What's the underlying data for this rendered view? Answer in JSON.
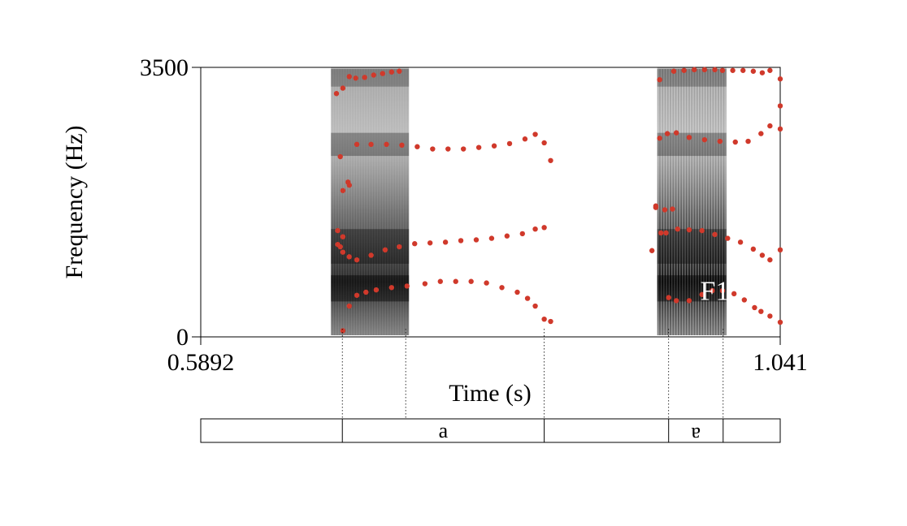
{
  "chart_data": {
    "type": "scatter",
    "title": "",
    "xlabel": "Time (s)",
    "ylabel": "Frequency (Hz)",
    "xlim": [
      0.5892,
      1.041
    ],
    "ylim": [
      0,
      3500
    ],
    "x_tick_labels": [
      "0.5892",
      "1.041"
    ],
    "y_tick_labels": [
      "0",
      "3500"
    ],
    "grid": false,
    "background": "grayscale spectrogram",
    "formant_color": "#d0392b",
    "annotations": [
      {
        "text": "F1",
        "x": 0.764,
        "y": 620
      },
      {
        "text": "F1",
        "x": 0.99,
        "y": 480
      }
    ],
    "voiced_segments": [
      {
        "start": 0.6996,
        "end": 0.749,
        "striations": 48
      },
      {
        "start": 0.954,
        "end": 0.9965,
        "striations": 26
      }
    ],
    "series": [
      {
        "name": "F1",
        "points": [
          [
            0.7,
            80
          ],
          [
            0.705,
            400
          ],
          [
            0.7109,
            540
          ],
          [
            0.718,
            580
          ],
          [
            0.726,
            610
          ],
          [
            0.738,
            640
          ],
          [
            0.75,
            660
          ],
          [
            0.764,
            690
          ],
          [
            0.776,
            720
          ],
          [
            0.788,
            720
          ],
          [
            0.8,
            720
          ],
          [
            0.812,
            700
          ],
          [
            0.824,
            640
          ],
          [
            0.836,
            580
          ],
          [
            0.844,
            500
          ],
          [
            0.85,
            400
          ],
          [
            0.857,
            230
          ],
          [
            0.862,
            200
          ],
          [
            0.954,
            510
          ],
          [
            0.96,
            470
          ],
          [
            0.97,
            470
          ],
          [
            0.98,
            550
          ],
          [
            0.988,
            600
          ],
          [
            0.996,
            600
          ],
          [
            1.005,
            560
          ],
          [
            1.013,
            480
          ],
          [
            1.021,
            380
          ],
          [
            1.026,
            330
          ],
          [
            1.033,
            270
          ],
          [
            1.041,
            190
          ]
        ]
      },
      {
        "name": "F2",
        "points": [
          [
            0.7,
            1300
          ],
          [
            0.705,
            1040
          ],
          [
            0.7109,
            1000
          ],
          [
            0.722,
            1060
          ],
          [
            0.733,
            1130
          ],
          [
            0.744,
            1170
          ],
          [
            0.756,
            1210
          ],
          [
            0.768,
            1220
          ],
          [
            0.78,
            1230
          ],
          [
            0.792,
            1250
          ],
          [
            0.804,
            1260
          ],
          [
            0.816,
            1280
          ],
          [
            0.828,
            1310
          ],
          [
            0.84,
            1340
          ],
          [
            0.85,
            1400
          ],
          [
            0.857,
            1420
          ],
          [
            0.952,
            1350
          ],
          [
            0.961,
            1400
          ],
          [
            0.97,
            1390
          ],
          [
            0.98,
            1380
          ],
          [
            0.99,
            1330
          ],
          [
            1.0,
            1280
          ],
          [
            1.01,
            1230
          ],
          [
            1.02,
            1140
          ],
          [
            1.027,
            1060
          ],
          [
            1.033,
            1000
          ],
          [
            1.041,
            1130
          ]
        ]
      },
      {
        "name": "F3",
        "points": [
          [
            0.7,
            1900
          ],
          [
            0.705,
            1970
          ],
          [
            0.7109,
            2500
          ],
          [
            0.722,
            2500
          ],
          [
            0.734,
            2500
          ],
          [
            0.746,
            2490
          ],
          [
            0.758,
            2470
          ],
          [
            0.77,
            2440
          ],
          [
            0.782,
            2440
          ],
          [
            0.794,
            2440
          ],
          [
            0.806,
            2460
          ],
          [
            0.818,
            2480
          ],
          [
            0.83,
            2510
          ],
          [
            0.842,
            2570
          ],
          [
            0.85,
            2630
          ],
          [
            0.857,
            2520
          ],
          [
            0.862,
            2290
          ],
          [
            0.947,
            2580
          ],
          [
            0.953,
            2640
          ],
          [
            0.96,
            2650
          ],
          [
            0.97,
            2590
          ],
          [
            0.982,
            2560
          ],
          [
            0.994,
            2540
          ],
          [
            1.006,
            2530
          ],
          [
            1.016,
            2540
          ],
          [
            1.026,
            2640
          ],
          [
            1.033,
            2740
          ],
          [
            1.041,
            3000
          ]
        ]
      },
      {
        "name": "F4",
        "points": [
          [
            0.695,
            3160
          ],
          [
            0.7,
            3230
          ],
          [
            0.705,
            3380
          ],
          [
            0.71,
            3360
          ],
          [
            0.717,
            3370
          ],
          [
            0.724,
            3400
          ],
          [
            0.731,
            3420
          ],
          [
            0.738,
            3440
          ],
          [
            0.744,
            3450
          ],
          [
            0.947,
            3340
          ],
          [
            0.958,
            3450
          ],
          [
            0.966,
            3460
          ],
          [
            0.974,
            3470
          ],
          [
            0.982,
            3470
          ],
          [
            0.99,
            3470
          ],
          [
            0.996,
            3460
          ],
          [
            1.004,
            3460
          ],
          [
            1.012,
            3460
          ],
          [
            1.02,
            3450
          ],
          [
            1.027,
            3430
          ],
          [
            1.033,
            3460
          ]
        ]
      },
      {
        "name": "stray",
        "points": [
          [
            0.698,
            2340
          ],
          [
            0.704,
            2010
          ],
          [
            0.696,
            1380
          ],
          [
            0.698,
            1170
          ],
          [
            0.7,
            1100
          ],
          [
            0.696,
            1200
          ],
          [
            0.948,
            1350
          ],
          [
            0.951,
            1650
          ],
          [
            0.957,
            1660
          ],
          [
            0.944,
            1680
          ],
          [
            0.944,
            1700
          ],
          [
            0.941,
            1120
          ],
          [
            1.041,
            3350
          ],
          [
            1.041,
            2700
          ]
        ]
      }
    ]
  },
  "tier": {
    "boundaries": [
      0.6996,
      0.749,
      0.857,
      0.954,
      0.9965
    ],
    "intervals": [
      {
        "start": 0.5892,
        "end": 0.6996,
        "label": ""
      },
      {
        "start": 0.6996,
        "end": 0.857,
        "label": "a"
      },
      {
        "start": 0.857,
        "end": 0.954,
        "label": ""
      },
      {
        "start": 0.954,
        "end": 0.9965,
        "label": "ɐ"
      },
      {
        "start": 0.9965,
        "end": 1.041,
        "label": ""
      }
    ]
  }
}
